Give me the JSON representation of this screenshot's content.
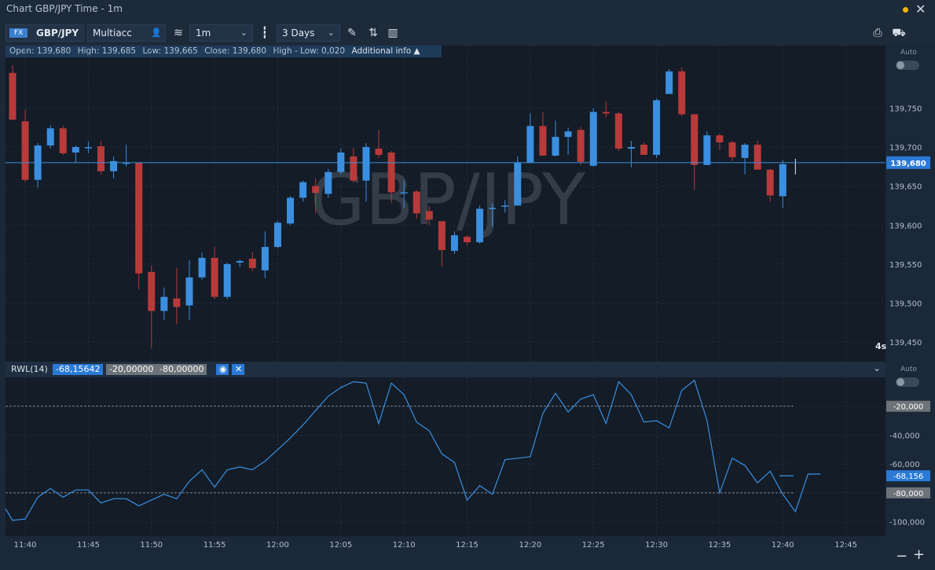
{
  "window": {
    "title": "Chart GBP/JPY Time - 1m"
  },
  "toolbar": {
    "instrument_badge": "FX",
    "instrument": "GBP/JPY",
    "account": "Multiacc",
    "timeframe": "1m",
    "range": "3 Days"
  },
  "infobar": {
    "open": "Open: 139,680",
    "high": "High: 139,685",
    "low": "Low: 139,665",
    "close": "Close: 139,680",
    "hl": "High - Low: 0,020",
    "additional": "Additional info ▲"
  },
  "watermark": "GBP/JPY",
  "auto_label": "Auto",
  "countdown": "4s",
  "indicator": {
    "name": "RWL(14)",
    "value": "-68,15642",
    "upper": "-20,00000",
    "lower": "-80,00000"
  },
  "colors": {
    "up": "#3b8fe0",
    "down": "#b83a3a",
    "line": "#3b8fe0",
    "price_tag": "#2a7ad6"
  },
  "chart_data": [
    {
      "type": "candlestick",
      "title": "",
      "ylim": [
        139.425,
        139.83
      ],
      "y_ticks": [
        "139,450",
        "139,500",
        "139,550",
        "139,600",
        "139,650",
        "139,700",
        "139,750"
      ],
      "x_ticks": [
        "11:40",
        "11:45",
        "11:50",
        "11:55",
        "12:00",
        "12:05",
        "12:10",
        "12:15",
        "12:20",
        "12:25",
        "12:30",
        "12:35",
        "12:40",
        "12:45"
      ],
      "current_price": 139.68,
      "current_price_label": "139,680",
      "candles": [
        {
          "t": "11:39",
          "o": 139.795,
          "h": 139.805,
          "l": 139.735,
          "c": 139.735
        },
        {
          "t": "11:40",
          "o": 139.733,
          "h": 139.748,
          "l": 139.655,
          "c": 139.658
        },
        {
          "t": "11:41",
          "o": 139.658,
          "h": 139.705,
          "l": 139.648,
          "c": 139.702
        },
        {
          "t": "11:42",
          "o": 139.702,
          "h": 139.728,
          "l": 139.698,
          "c": 139.724
        },
        {
          "t": "11:43",
          "o": 139.724,
          "h": 139.727,
          "l": 139.69,
          "c": 139.692
        },
        {
          "t": "11:44",
          "o": 139.693,
          "h": 139.702,
          "l": 139.68,
          "c": 139.7
        },
        {
          "t": "11:45",
          "o": 139.7,
          "h": 139.707,
          "l": 139.692,
          "c": 139.7
        },
        {
          "t": "11:46",
          "o": 139.701,
          "h": 139.708,
          "l": 139.665,
          "c": 139.669
        },
        {
          "t": "11:47",
          "o": 139.669,
          "h": 139.688,
          "l": 139.66,
          "c": 139.682
        },
        {
          "t": "11:48",
          "o": 139.68,
          "h": 139.703,
          "l": 139.675,
          "c": 139.68
        },
        {
          "t": "11:49",
          "o": 139.68,
          "h": 139.68,
          "l": 139.518,
          "c": 139.538
        },
        {
          "t": "11:50",
          "o": 139.54,
          "h": 139.548,
          "l": 139.442,
          "c": 139.49
        },
        {
          "t": "11:51",
          "o": 139.49,
          "h": 139.52,
          "l": 139.478,
          "c": 139.508
        },
        {
          "t": "11:52",
          "o": 139.506,
          "h": 139.545,
          "l": 139.473,
          "c": 139.495
        },
        {
          "t": "11:53",
          "o": 139.497,
          "h": 139.555,
          "l": 139.478,
          "c": 139.533
        },
        {
          "t": "11:54",
          "o": 139.533,
          "h": 139.565,
          "l": 139.53,
          "c": 139.558
        },
        {
          "t": "11:55",
          "o": 139.558,
          "h": 139.572,
          "l": 139.505,
          "c": 139.508
        },
        {
          "t": "11:56",
          "o": 139.508,
          "h": 139.552,
          "l": 139.505,
          "c": 139.55
        },
        {
          "t": "11:57",
          "o": 139.552,
          "h": 139.556,
          "l": 139.546,
          "c": 139.554
        },
        {
          "t": "11:58",
          "o": 139.557,
          "h": 139.565,
          "l": 139.541,
          "c": 139.545
        },
        {
          "t": "11:59",
          "o": 139.542,
          "h": 139.592,
          "l": 139.532,
          "c": 139.572
        },
        {
          "t": "12:00",
          "o": 139.572,
          "h": 139.605,
          "l": 139.57,
          "c": 139.603
        },
        {
          "t": "12:01",
          "o": 139.602,
          "h": 139.637,
          "l": 139.6,
          "c": 139.635
        },
        {
          "t": "12:02",
          "o": 139.635,
          "h": 139.657,
          "l": 139.63,
          "c": 139.655
        },
        {
          "t": "12:03",
          "o": 139.65,
          "h": 139.66,
          "l": 139.615,
          "c": 139.641
        },
        {
          "t": "12:04",
          "o": 139.64,
          "h": 139.672,
          "l": 139.635,
          "c": 139.668
        },
        {
          "t": "12:05",
          "o": 139.668,
          "h": 139.698,
          "l": 139.665,
          "c": 139.693
        },
        {
          "t": "12:06",
          "o": 139.688,
          "h": 139.699,
          "l": 139.654,
          "c": 139.657
        },
        {
          "t": "12:07",
          "o": 139.657,
          "h": 139.705,
          "l": 139.63,
          "c": 139.7
        },
        {
          "t": "12:08",
          "o": 139.698,
          "h": 139.722,
          "l": 139.686,
          "c": 139.69
        },
        {
          "t": "12:09",
          "o": 139.693,
          "h": 139.695,
          "l": 139.628,
          "c": 139.642
        },
        {
          "t": "12:10",
          "o": 139.642,
          "h": 139.657,
          "l": 139.622,
          "c": 139.642
        },
        {
          "t": "12:11",
          "o": 139.643,
          "h": 139.645,
          "l": 139.608,
          "c": 139.615
        },
        {
          "t": "12:12",
          "o": 139.618,
          "h": 139.624,
          "l": 139.6,
          "c": 139.607
        },
        {
          "t": "12:13",
          "o": 139.605,
          "h": 139.605,
          "l": 139.547,
          "c": 139.568
        },
        {
          "t": "12:14",
          "o": 139.567,
          "h": 139.592,
          "l": 139.563,
          "c": 139.587
        },
        {
          "t": "12:15",
          "o": 139.585,
          "h": 139.587,
          "l": 139.574,
          "c": 139.578
        },
        {
          "t": "12:16",
          "o": 139.578,
          "h": 139.625,
          "l": 139.576,
          "c": 139.621
        },
        {
          "t": "12:17",
          "o": 139.622,
          "h": 139.628,
          "l": 139.598,
          "c": 139.622
        },
        {
          "t": "12:18",
          "o": 139.625,
          "h": 139.632,
          "l": 139.616,
          "c": 139.625
        },
        {
          "t": "12:19",
          "o": 139.625,
          "h": 139.688,
          "l": 139.625,
          "c": 139.68
        },
        {
          "t": "12:20",
          "o": 139.68,
          "h": 139.743,
          "l": 139.68,
          "c": 139.727
        },
        {
          "t": "12:21",
          "o": 139.727,
          "h": 139.745,
          "l": 139.69,
          "c": 139.689
        },
        {
          "t": "12:22",
          "o": 139.689,
          "h": 139.734,
          "l": 139.688,
          "c": 139.713
        },
        {
          "t": "12:23",
          "o": 139.713,
          "h": 139.725,
          "l": 139.69,
          "c": 139.72
        },
        {
          "t": "12:24",
          "o": 139.722,
          "h": 139.726,
          "l": 139.677,
          "c": 139.681
        },
        {
          "t": "12:25",
          "o": 139.676,
          "h": 139.75,
          "l": 139.675,
          "c": 139.745
        },
        {
          "t": "12:26",
          "o": 139.745,
          "h": 139.759,
          "l": 139.738,
          "c": 139.743
        },
        {
          "t": "12:27",
          "o": 139.743,
          "h": 139.745,
          "l": 139.695,
          "c": 139.698
        },
        {
          "t": "12:28",
          "o": 139.698,
          "h": 139.708,
          "l": 139.674,
          "c": 139.7
        },
        {
          "t": "12:29",
          "o": 139.703,
          "h": 139.706,
          "l": 139.69,
          "c": 139.69
        },
        {
          "t": "12:30",
          "o": 139.69,
          "h": 139.762,
          "l": 139.686,
          "c": 139.76
        },
        {
          "t": "12:31",
          "o": 139.768,
          "h": 139.8,
          "l": 139.768,
          "c": 139.797
        },
        {
          "t": "12:32",
          "o": 139.797,
          "h": 139.802,
          "l": 139.74,
          "c": 139.742
        },
        {
          "t": "12:33",
          "o": 139.742,
          "h": 139.742,
          "l": 139.645,
          "c": 139.677
        },
        {
          "t": "12:34",
          "o": 139.677,
          "h": 139.72,
          "l": 139.677,
          "c": 139.715
        },
        {
          "t": "12:35",
          "o": 139.715,
          "h": 139.717,
          "l": 139.696,
          "c": 139.706
        },
        {
          "t": "12:36",
          "o": 139.706,
          "h": 139.708,
          "l": 139.682,
          "c": 139.687
        },
        {
          "t": "12:37",
          "o": 139.686,
          "h": 139.705,
          "l": 139.665,
          "c": 139.703
        },
        {
          "t": "12:38",
          "o": 139.703,
          "h": 139.708,
          "l": 139.671,
          "c": 139.671
        },
        {
          "t": "12:39",
          "o": 139.671,
          "h": 139.672,
          "l": 139.63,
          "c": 139.638
        },
        {
          "t": "12:40",
          "o": 139.637,
          "h": 139.683,
          "l": 139.622,
          "c": 139.678
        },
        {
          "t": "12:41",
          "o": 139.68,
          "h": 139.685,
          "l": 139.665,
          "c": 139.68
        }
      ]
    },
    {
      "type": "line",
      "title": "RWL(14)",
      "ylim": [
        -110,
        0
      ],
      "y_ticks": [
        "-20,000",
        "-40,000",
        "-60,000",
        "-80,000",
        "-100,000"
      ],
      "levels": [
        -20,
        -80
      ],
      "level_labels": [
        "-20,000",
        "-80,000"
      ],
      "current_value": -68.156,
      "current_value_label": "-68,156",
      "series": [
        {
          "values": [
            -91,
            -99,
            -98,
            -83,
            -77,
            -83,
            -78,
            -78,
            -87,
            -84,
            -84,
            -89,
            -85,
            -81,
            -84,
            -72,
            -64,
            -76,
            -64,
            -62,
            -64,
            -58,
            -50,
            -42,
            -33,
            -23,
            -13,
            -7,
            -3,
            -4,
            -32,
            -4,
            -12,
            -31,
            -37,
            -53,
            -59,
            -85,
            -75,
            -81,
            -57,
            -56,
            -55,
            -25,
            -11,
            -24,
            -15,
            -12,
            -32,
            -3,
            -12,
            -31,
            -30,
            -35,
            -9,
            -2,
            -30,
            -80,
            -56,
            -61,
            -73,
            -65,
            -81,
            -93,
            -67,
            -67
          ]
        }
      ]
    }
  ]
}
